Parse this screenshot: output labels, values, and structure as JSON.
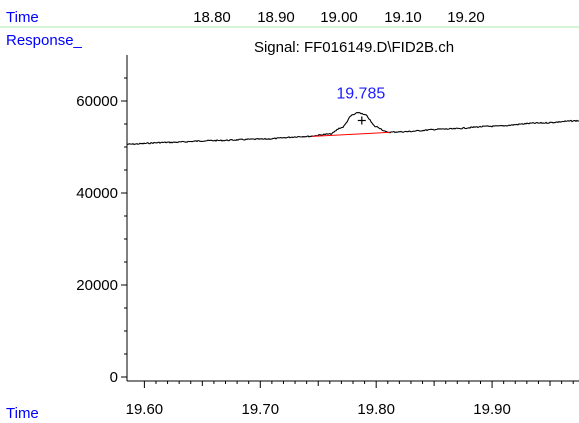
{
  "colors": {
    "background": "#ffffff",
    "divider": "#a8e8a8",
    "header_text": "#0000ff",
    "peak_label": "#1a1aff",
    "trace": "#000000",
    "baseline": "#ff0000",
    "axis": "#000000"
  },
  "header": {
    "time_label": "Time",
    "top_ticks": [
      "18.80",
      "18.90",
      "19.00",
      "19.10",
      "19.20"
    ],
    "response_label": "Response_",
    "signal_title": "Signal: FF016149.D\\FID2B.ch"
  },
  "footer": {
    "time_label": "Time"
  },
  "chart_data": {
    "type": "line",
    "title": "Signal: FF016149.D\\FID2B.ch",
    "xlabel": "Time",
    "ylabel": "Response_",
    "xlim": [
      19.585,
      19.975
    ],
    "ylim": [
      0,
      70000
    ],
    "x_ticks": [
      "19.60",
      "19.70",
      "19.80",
      "19.90"
    ],
    "y_ticks": [
      "0",
      "20000",
      "40000",
      "60000"
    ],
    "grid": false,
    "series": [
      {
        "points": [
          [
            19.585,
            50600
          ],
          [
            19.62,
            51000
          ],
          [
            19.66,
            51400
          ],
          [
            19.7,
            51700
          ],
          [
            19.74,
            52300
          ],
          [
            19.76,
            52800
          ],
          [
            19.77,
            54200
          ],
          [
            19.78,
            57000
          ],
          [
            19.785,
            57500
          ],
          [
            19.79,
            57000
          ],
          [
            19.8,
            54400
          ],
          [
            19.81,
            53200
          ],
          [
            19.82,
            53300
          ],
          [
            19.86,
            53900
          ],
          [
            19.9,
            54500
          ],
          [
            19.94,
            55200
          ],
          [
            19.975,
            55700
          ]
        ]
      }
    ],
    "baseline_segment": [
      [
        19.745,
        52300
      ],
      [
        19.812,
        53200
      ]
    ],
    "peaks": [
      {
        "label": "19.785",
        "x": 19.785,
        "y": 57500
      }
    ]
  }
}
